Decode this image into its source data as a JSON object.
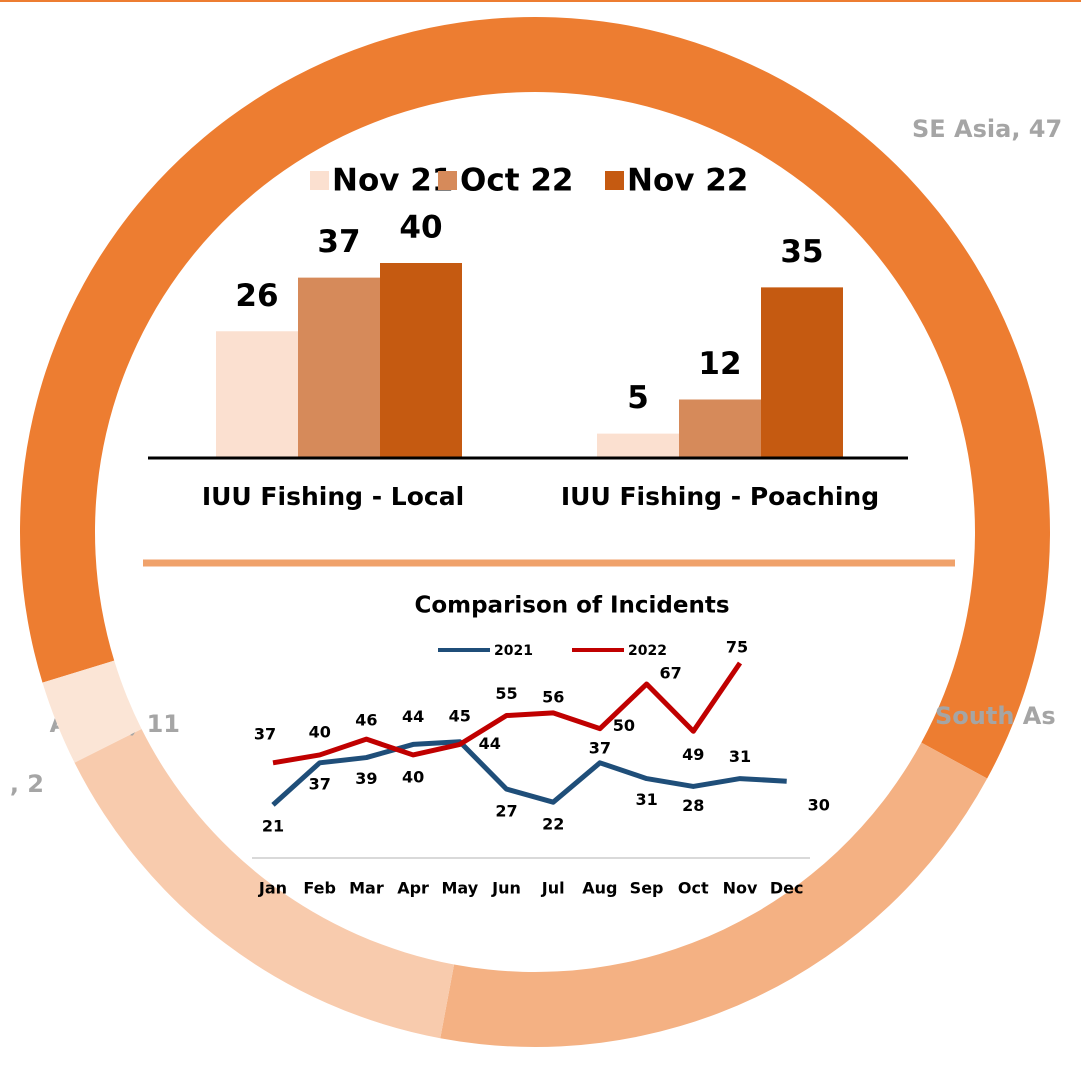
{
  "chart_data": [
    {
      "type": "pie",
      "donut": true,
      "values": [
        47,
        15,
        11,
        2
      ],
      "value_labels": [
        "SE Asia, 47",
        "South As",
        "Africa, 11",
        ", 2"
      ],
      "colors": [
        "#ed7d31",
        "#f4b183",
        "#f8cbad",
        "#fbe5d6"
      ]
    },
    {
      "type": "bar",
      "categories": [
        "IUU Fishing - Local",
        "IUU Fishing - Poaching"
      ],
      "series": [
        {
          "name": "Nov 21",
          "color": "#fbe0d0",
          "values": [
            26,
            5
          ]
        },
        {
          "name": "Oct 22",
          "color": "#d68a5a",
          "values": [
            37,
            12
          ]
        },
        {
          "name": "Nov 22",
          "color": "#c55a11",
          "values": [
            40,
            35
          ]
        }
      ],
      "legend": "top"
    },
    {
      "type": "line",
      "title": "Comparison of Incidents",
      "categories": [
        "Jan",
        "Feb",
        "Mar",
        "Apr",
        "May",
        "Jun",
        "Jul",
        "Aug",
        "Sep",
        "Oct",
        "Nov",
        "Dec"
      ],
      "series": [
        {
          "name": "2021",
          "color": "#1f4e79",
          "values": [
            21,
            37,
            39,
            44,
            45,
            27,
            22,
            37,
            31,
            28,
            31,
            30
          ]
        },
        {
          "name": "2022",
          "color": "#c00000",
          "values": [
            37,
            40,
            46,
            40,
            44,
            55,
            56,
            50,
            67,
            49,
            75,
            null
          ]
        }
      ],
      "legend": "top"
    }
  ]
}
